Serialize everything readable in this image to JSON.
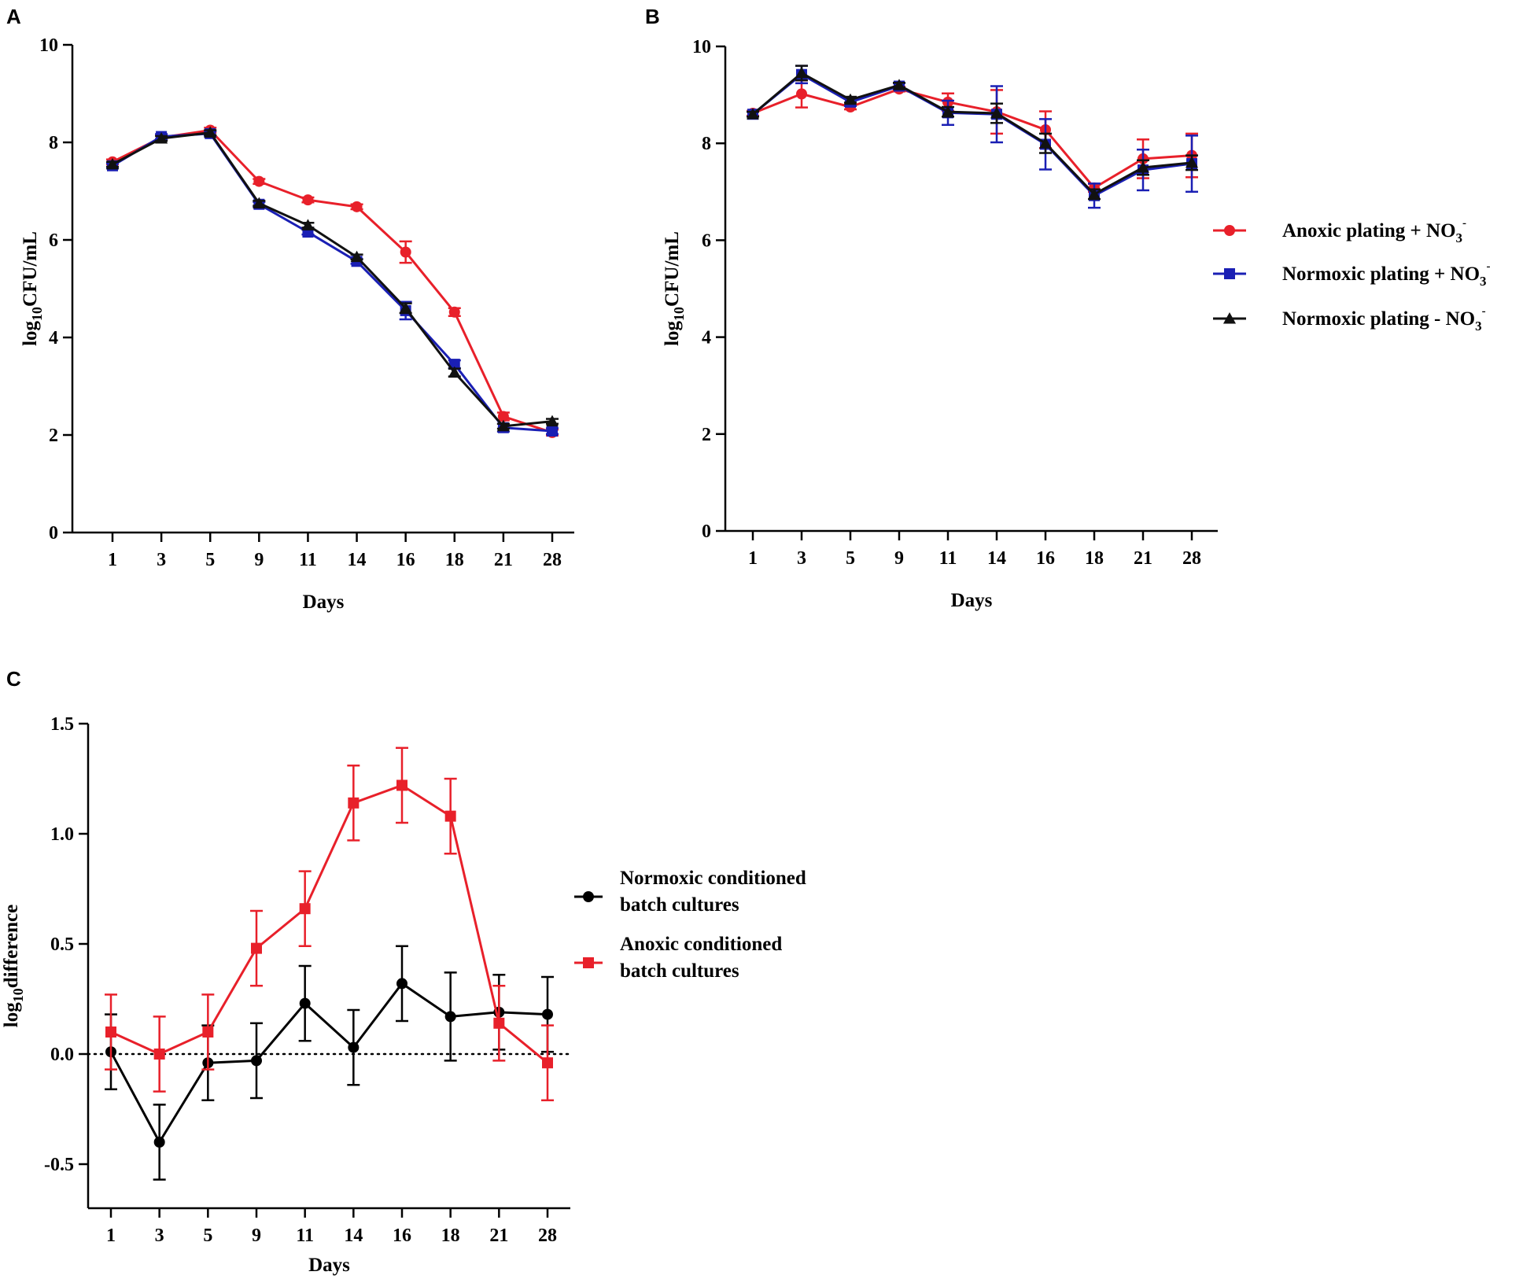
{
  "chart_data": [
    {
      "panel": "A",
      "type": "line",
      "categories": [
        "1",
        "3",
        "5",
        "9",
        "11",
        "14",
        "16",
        "18",
        "21",
        "28"
      ],
      "xlabel": "Days",
      "ylabel": {
        "prefix": "log",
        "sub": "10",
        "suffix": "CFU/mL"
      },
      "ylim": [
        0,
        10
      ],
      "yticks": [
        0,
        2,
        4,
        6,
        8,
        10
      ],
      "ytick_labels": [
        "0",
        "2",
        "4",
        "6",
        "8",
        "10"
      ],
      "series": [
        {
          "name": "Anoxic plating + NO3-",
          "color": "#e8202a",
          "marker": "circle",
          "values": [
            7.6,
            8.1,
            8.25,
            7.2,
            6.82,
            6.68,
            5.75,
            4.52,
            2.38,
            2.05
          ],
          "errors": [
            0.05,
            0.05,
            0.05,
            0.05,
            0.05,
            0.05,
            0.22,
            0.08,
            0.08,
            0.06
          ]
        },
        {
          "name": "Normoxic plating + NO3-",
          "color": "#1a1fb4",
          "marker": "square",
          "values": [
            7.52,
            8.12,
            8.18,
            6.73,
            6.16,
            5.56,
            4.55,
            3.45,
            2.15,
            2.08
          ],
          "errors": [
            0.05,
            0.05,
            0.05,
            0.05,
            0.05,
            0.05,
            0.18,
            0.08,
            0.08,
            0.06
          ]
        },
        {
          "name": "Normoxic plating - NO3-",
          "color": "#111111",
          "marker": "triangle",
          "values": [
            7.55,
            8.08,
            8.2,
            6.75,
            6.3,
            5.65,
            4.6,
            3.28,
            2.18,
            2.28
          ],
          "errors": [
            0.05,
            0.05,
            0.05,
            0.05,
            0.05,
            0.05,
            0.1,
            0.08,
            0.05,
            0.05
          ]
        }
      ]
    },
    {
      "panel": "B",
      "type": "line",
      "categories": [
        "1",
        "3",
        "5",
        "9",
        "11",
        "14",
        "16",
        "18",
        "21",
        "28"
      ],
      "xlabel": "Days",
      "ylabel": {
        "prefix": "log",
        "sub": "10",
        "suffix": "CFU/mL"
      },
      "ylim": [
        0,
        10
      ],
      "yticks": [
        0,
        2,
        4,
        6,
        8,
        10
      ],
      "ytick_labels": [
        "0",
        "2",
        "4",
        "6",
        "8",
        "10"
      ],
      "legend": [
        {
          "label": "Anoxic plating + NO",
          "sub": "3",
          "sup": "-",
          "color": "#e8202a",
          "marker": "circle"
        },
        {
          "label": "Normoxic plating + NO",
          "sub": "3",
          "sup": "-",
          "color": "#1a1fb4",
          "marker": "square"
        },
        {
          "label": "Normoxic plating - NO",
          "sub": "3",
          "sup": "-",
          "color": "#111111",
          "marker": "triangle"
        }
      ],
      "series": [
        {
          "name": "Anoxic plating + NO3-",
          "color": "#e8202a",
          "marker": "circle",
          "values": [
            8.62,
            9.02,
            8.75,
            9.12,
            8.85,
            8.65,
            8.28,
            7.08,
            7.68,
            7.75
          ],
          "errors": [
            0.05,
            0.28,
            0.05,
            0.05,
            0.18,
            0.45,
            0.38,
            0.08,
            0.4,
            0.45
          ]
        },
        {
          "name": "Normoxic plating + NO3-",
          "color": "#1a1fb4",
          "marker": "square",
          "values": [
            8.6,
            9.42,
            8.85,
            9.18,
            8.63,
            8.6,
            7.98,
            6.92,
            7.45,
            7.58
          ],
          "errors": [
            0.05,
            0.18,
            0.08,
            0.06,
            0.25,
            0.58,
            0.52,
            0.25,
            0.42,
            0.58
          ]
        },
        {
          "name": "Normoxic plating - NO3-",
          "color": "#111111",
          "marker": "triangle",
          "values": [
            8.6,
            9.45,
            8.9,
            9.2,
            8.65,
            8.62,
            8.0,
            6.95,
            7.5,
            7.6
          ],
          "errors": [
            0.05,
            0.15,
            0.06,
            0.05,
            0.1,
            0.2,
            0.2,
            0.1,
            0.15,
            0.15
          ]
        }
      ]
    },
    {
      "panel": "C",
      "type": "line",
      "categories": [
        "1",
        "3",
        "5",
        "9",
        "11",
        "14",
        "16",
        "18",
        "21",
        "28"
      ],
      "xlabel": "Days",
      "ylabel": {
        "prefix": "log",
        "sub": "10",
        "suffix": "difference"
      },
      "ylim": [
        -0.7,
        1.5
      ],
      "yticks": [
        -0.5,
        0.0,
        0.5,
        1.0,
        1.5
      ],
      "ytick_labels": [
        "-0.5",
        "0.0",
        "0.5",
        "1.0",
        "1.5"
      ],
      "reference_line": 0,
      "legend": [
        {
          "lines": [
            "Normoxic conditioned",
            "batch cultures"
          ],
          "color": "#000000",
          "marker": "circle"
        },
        {
          "lines": [
            "Anoxic conditioned",
            "batch cultures"
          ],
          "color": "#e8202a",
          "marker": "square"
        }
      ],
      "series": [
        {
          "name": "Normoxic conditioned batch cultures",
          "color": "#000000",
          "marker": "circle",
          "values": [
            0.01,
            -0.4,
            -0.04,
            -0.03,
            0.23,
            0.03,
            0.32,
            0.17,
            0.19,
            0.18
          ],
          "errors": [
            0.17,
            0.17,
            0.17,
            0.17,
            0.17,
            0.17,
            0.17,
            0.2,
            0.17,
            0.17
          ]
        },
        {
          "name": "Anoxic conditioned batch cultures",
          "color": "#e8202a",
          "marker": "square",
          "values": [
            0.1,
            0.0,
            0.1,
            0.48,
            0.66,
            1.14,
            1.22,
            1.08,
            0.14,
            -0.04
          ],
          "errors": [
            0.17,
            0.17,
            0.17,
            0.17,
            0.17,
            0.17,
            0.17,
            0.17,
            0.17,
            0.17
          ]
        }
      ]
    }
  ],
  "panel_labels": [
    "A",
    "B",
    "C"
  ]
}
